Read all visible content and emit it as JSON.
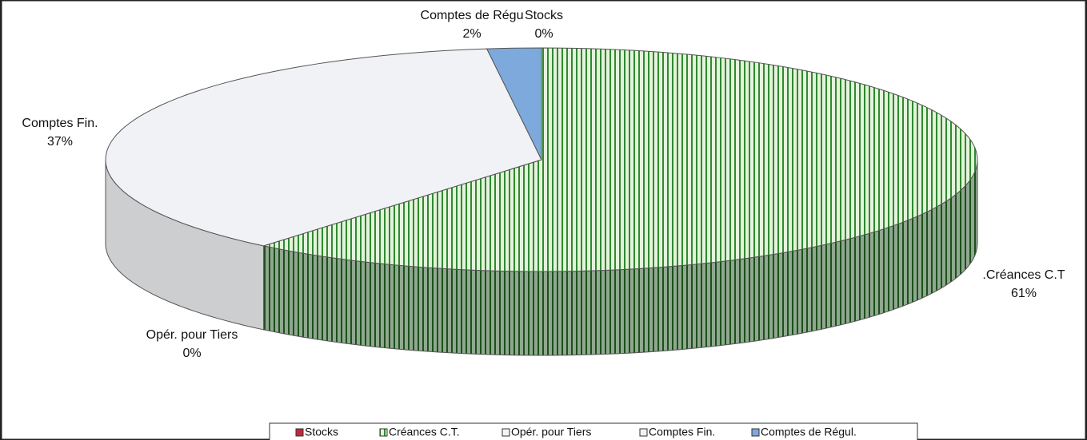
{
  "chart_data": {
    "type": "pie3d",
    "categories": [
      "Stocks",
      "Créances C.T.",
      "Opér. pour Tiers",
      "Comptes Fin.",
      "Comptes de Régul."
    ],
    "labels": [
      "Stocks",
      ".Créances C.T",
      "Opér. pour Tiers",
      "Comptes Fin.",
      "Comptes de Régu"
    ],
    "values": [
      0,
      61,
      0,
      37,
      2
    ],
    "value_labels": [
      "0%",
      "61%",
      "0%",
      "37%",
      "2%"
    ],
    "colors": [
      "#c0283a",
      "#3c9a3c",
      "#f4f5f6",
      "#f0f2f5",
      "#7ea9dc"
    ],
    "legend": "bottom"
  }
}
